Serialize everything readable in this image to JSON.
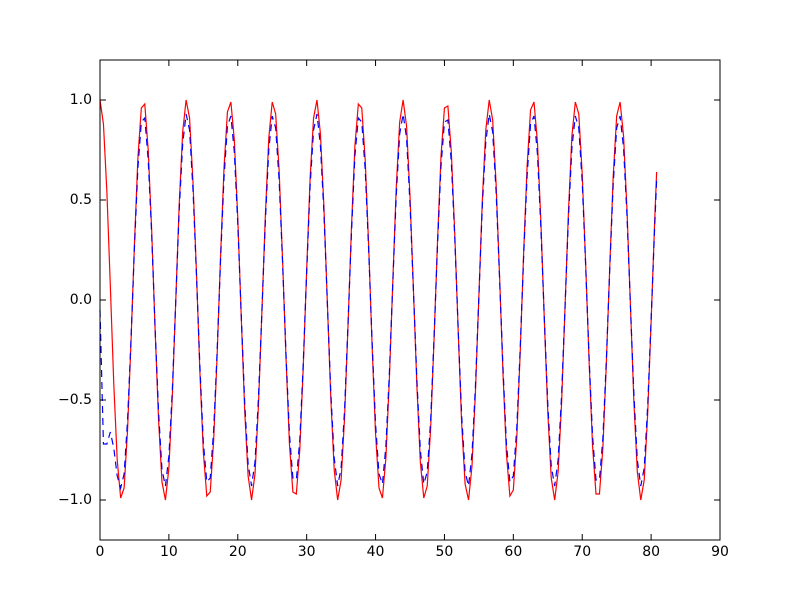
{
  "chart_data": {
    "type": "line",
    "x": [
      0,
      0.5,
      1,
      1.5,
      2,
      2.5,
      3,
      3.5,
      4,
      4.5,
      5,
      5.5,
      6,
      6.5,
      7,
      7.5,
      8,
      8.5,
      9,
      9.5,
      10,
      10.5,
      11,
      11.5,
      12,
      12.5,
      13,
      13.5,
      14,
      14.5,
      15,
      15.5,
      16,
      16.5,
      17,
      17.5,
      18,
      18.5,
      19,
      19.5,
      20,
      20.5,
      21,
      21.5,
      22,
      22.5,
      23,
      23.5,
      24,
      24.5,
      25,
      25.5,
      26,
      26.5,
      27,
      27.5,
      28,
      28.5,
      29,
      29.5,
      30,
      30.5,
      31,
      31.5,
      32,
      32.5,
      33,
      33.5,
      34,
      34.5,
      35,
      35.5,
      36,
      36.5,
      37,
      37.5,
      38,
      38.5,
      39,
      39.5,
      40,
      40.5,
      41,
      41.5,
      42,
      42.5,
      43,
      43.5,
      44,
      44.5,
      45,
      45.5,
      46,
      46.5,
      47,
      47.5,
      48,
      48.5,
      49,
      49.5,
      50,
      50.5,
      51,
      51.5,
      52,
      52.5,
      53,
      53.5,
      54,
      54.5,
      55,
      55.5,
      56,
      56.5,
      57,
      57.5,
      58,
      58.5,
      59,
      59.5,
      60,
      60.5,
      61,
      61.5,
      62,
      62.5,
      63,
      63.5,
      64,
      64.5,
      65,
      65.5,
      66,
      66.5,
      67,
      67.5,
      68,
      68.5,
      69,
      69.5,
      70,
      70.5,
      71,
      71.5,
      72,
      72.5,
      73,
      73.5,
      74,
      74.5,
      75,
      75.5,
      76,
      76.5,
      77,
      77.5,
      78,
      78.5,
      79,
      79.5,
      80,
      80.5,
      80.8
    ],
    "series": [
      {
        "color": "#ff0000",
        "dash": false,
        "values": [
          1.0,
          0.88,
          0.54,
          0.07,
          -0.42,
          -0.8,
          -0.99,
          -0.94,
          -0.65,
          -0.21,
          0.28,
          0.71,
          0.96,
          0.98,
          0.75,
          0.35,
          -0.15,
          -0.6,
          -0.91,
          -1.0,
          -0.84,
          -0.48,
          0.0,
          0.48,
          0.84,
          1.0,
          0.91,
          0.59,
          0.14,
          -0.36,
          -0.76,
          -0.98,
          -0.96,
          -0.7,
          -0.28,
          0.22,
          0.66,
          0.94,
          0.99,
          0.8,
          0.41,
          -0.08,
          -0.55,
          -0.88,
          -1.0,
          -0.87,
          -0.53,
          -0.06,
          0.42,
          0.81,
          0.99,
          0.93,
          0.65,
          0.2,
          -0.29,
          -0.72,
          -0.96,
          -0.97,
          -0.75,
          -0.34,
          0.15,
          0.61,
          0.91,
          1.0,
          0.83,
          0.47,
          -0.01,
          -0.49,
          -0.85,
          -1.0,
          -0.9,
          -0.59,
          -0.13,
          0.36,
          0.77,
          0.98,
          0.96,
          0.7,
          0.27,
          -0.23,
          -0.67,
          -0.94,
          -0.99,
          -0.79,
          -0.4,
          0.09,
          0.56,
          0.89,
          1.0,
          0.87,
          0.52,
          0.05,
          -0.43,
          -0.81,
          -0.99,
          -0.93,
          -0.64,
          -0.19,
          0.3,
          0.72,
          0.96,
          0.97,
          0.74,
          0.33,
          -0.16,
          -0.62,
          -0.92,
          -1.0,
          -0.83,
          -0.46,
          0.02,
          0.5,
          0.85,
          1.0,
          0.9,
          0.58,
          0.12,
          -0.37,
          -0.77,
          -0.98,
          -0.95,
          -0.69,
          -0.26,
          0.24,
          0.67,
          0.95,
          0.99,
          0.79,
          0.39,
          -0.1,
          -0.56,
          -0.89,
          -1.0,
          -0.86,
          -0.52,
          -0.04,
          0.44,
          0.82,
          0.99,
          0.93,
          0.63,
          0.18,
          -0.31,
          -0.73,
          -0.97,
          -0.97,
          -0.74,
          -0.32,
          0.17,
          0.62,
          0.92,
          0.99,
          0.82,
          0.45,
          -0.03,
          -0.51,
          -0.86,
          -1.0,
          -0.9,
          -0.57,
          -0.11,
          0.38,
          0.64
        ]
      },
      {
        "color": "#0000ff",
        "dash": true,
        "values": [
          -0.05,
          -0.72,
          -0.72,
          -0.66,
          -0.74,
          -0.88,
          -0.94,
          -0.87,
          -0.6,
          -0.2,
          0.26,
          0.66,
          0.89,
          0.91,
          0.7,
          0.33,
          -0.14,
          -0.56,
          -0.85,
          -0.93,
          -0.78,
          -0.45,
          0.0,
          0.45,
          0.78,
          0.93,
          0.85,
          0.55,
          0.13,
          -0.33,
          -0.71,
          -0.91,
          -0.89,
          -0.65,
          -0.26,
          0.2,
          0.61,
          0.87,
          0.92,
          0.74,
          0.38,
          -0.07,
          -0.51,
          -0.82,
          -0.93,
          -0.81,
          -0.49,
          -0.06,
          0.39,
          0.75,
          0.92,
          0.86,
          0.6,
          0.19,
          -0.27,
          -0.67,
          -0.89,
          -0.9,
          -0.7,
          -0.32,
          0.14,
          0.57,
          0.85,
          0.93,
          0.77,
          0.44,
          -0.01,
          -0.46,
          -0.79,
          -0.93,
          -0.84,
          -0.55,
          -0.12,
          0.33,
          0.72,
          0.91,
          0.89,
          0.65,
          0.25,
          -0.21,
          -0.62,
          -0.87,
          -0.92,
          -0.73,
          -0.37,
          0.08,
          0.52,
          0.83,
          0.93,
          0.81,
          0.48,
          0.05,
          -0.4,
          -0.75,
          -0.92,
          -0.86,
          -0.6,
          -0.18,
          0.28,
          0.67,
          0.89,
          0.9,
          0.69,
          0.31,
          -0.15,
          -0.58,
          -0.86,
          -0.93,
          -0.77,
          -0.43,
          0.02,
          0.47,
          0.79,
          0.93,
          0.84,
          0.54,
          0.11,
          -0.34,
          -0.72,
          -0.91,
          -0.88,
          -0.64,
          -0.24,
          0.22,
          0.62,
          0.88,
          0.92,
          0.73,
          0.36,
          -0.09,
          -0.52,
          -0.83,
          -0.93,
          -0.8,
          -0.48,
          -0.04,
          0.41,
          0.76,
          0.92,
          0.86,
          0.59,
          0.17,
          -0.29,
          -0.68,
          -0.9,
          -0.9,
          -0.69,
          -0.3,
          0.16,
          0.58,
          0.86,
          0.92,
          0.76,
          0.42,
          -0.03,
          -0.47,
          -0.8,
          -0.93,
          -0.84,
          -0.53,
          -0.1,
          0.35,
          0.6
        ]
      }
    ],
    "xlim": [
      0,
      90
    ],
    "xticks": [
      0,
      10,
      20,
      30,
      40,
      50,
      60,
      70,
      80,
      90
    ],
    "ylim": [
      -1.2,
      1.2
    ],
    "yticks": [
      {
        "value": -1,
        "label": "−1.0"
      },
      {
        "value": -0.5,
        "label": "−0.5"
      },
      {
        "value": 0,
        "label": "0.0"
      },
      {
        "value": 0.5,
        "label": "0.5"
      },
      {
        "value": 1,
        "label": "1.0"
      }
    ],
    "grid": false
  }
}
